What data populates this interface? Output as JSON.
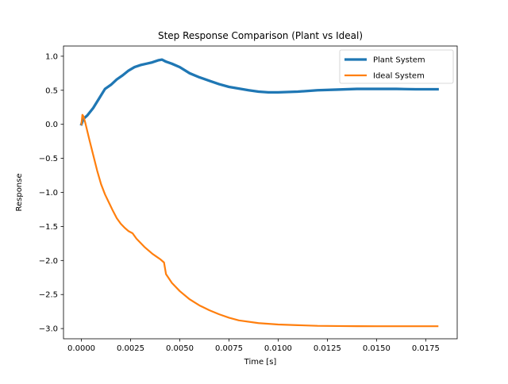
{
  "chart_data": {
    "type": "line",
    "title": "Step Response Comparison (Plant vs Ideal)",
    "xlabel": "Time [s]",
    "ylabel": "Response",
    "xlim": [
      -0.00091,
      0.0191
    ],
    "ylim": [
      -3.15,
      1.15
    ],
    "x_ticks": [
      0.0,
      0.0025,
      0.005,
      0.0075,
      0.01,
      0.0125,
      0.015,
      0.0175
    ],
    "x_tick_labels": [
      "0.0000",
      "0.0025",
      "0.0050",
      "0.0075",
      "0.0100",
      "0.0125",
      "0.0150",
      "0.0175"
    ],
    "y_ticks": [
      -3.0,
      -2.5,
      -2.0,
      -1.5,
      -1.0,
      -0.5,
      0.0,
      0.5,
      1.0
    ],
    "y_tick_labels": [
      "−3.0",
      "−2.5",
      "−2.0",
      "−1.5",
      "−1.0",
      "−0.5",
      "0.0",
      "0.5",
      "1.0"
    ],
    "grid": false,
    "legend_position": "top-right",
    "series": [
      {
        "name": "Plant System",
        "color": "#1f77b4",
        "line_width": "thick",
        "points": [
          [
            0.0,
            0.0
          ],
          [
            0.0001,
            0.08
          ],
          [
            0.0003,
            0.13
          ],
          [
            0.0006,
            0.24
          ],
          [
            0.0009,
            0.38
          ],
          [
            0.0012,
            0.52
          ],
          [
            0.0015,
            0.58
          ],
          [
            0.0018,
            0.66
          ],
          [
            0.0021,
            0.72
          ],
          [
            0.0024,
            0.79
          ],
          [
            0.0027,
            0.84
          ],
          [
            0.003,
            0.87
          ],
          [
            0.0033,
            0.89
          ],
          [
            0.0036,
            0.91
          ],
          [
            0.0039,
            0.94
          ],
          [
            0.0041,
            0.95
          ],
          [
            0.0043,
            0.92
          ],
          [
            0.0046,
            0.89
          ],
          [
            0.005,
            0.84
          ],
          [
            0.0055,
            0.75
          ],
          [
            0.006,
            0.69
          ],
          [
            0.0065,
            0.64
          ],
          [
            0.007,
            0.59
          ],
          [
            0.0075,
            0.55
          ],
          [
            0.008,
            0.525
          ],
          [
            0.0085,
            0.5
          ],
          [
            0.009,
            0.48
          ],
          [
            0.0095,
            0.47
          ],
          [
            0.01,
            0.47
          ],
          [
            0.011,
            0.48
          ],
          [
            0.012,
            0.5
          ],
          [
            0.013,
            0.51
          ],
          [
            0.014,
            0.52
          ],
          [
            0.015,
            0.52
          ],
          [
            0.016,
            0.52
          ],
          [
            0.017,
            0.515
          ],
          [
            0.0181,
            0.515
          ]
        ]
      },
      {
        "name": "Ideal System",
        "color": "#ff7f0e",
        "line_width": "normal",
        "points": [
          [
            0.0,
            0.0
          ],
          [
            5e-05,
            0.14
          ],
          [
            0.0001,
            0.12
          ],
          [
            0.0002,
            0.02
          ],
          [
            0.0004,
            -0.22
          ],
          [
            0.0006,
            -0.45
          ],
          [
            0.0008,
            -0.68
          ],
          [
            0.001,
            -0.88
          ],
          [
            0.0012,
            -1.03
          ],
          [
            0.0014,
            -1.15
          ],
          [
            0.0016,
            -1.27
          ],
          [
            0.0018,
            -1.38
          ],
          [
            0.002,
            -1.46
          ],
          [
            0.0022,
            -1.52
          ],
          [
            0.0024,
            -1.57
          ],
          [
            0.0026,
            -1.6
          ],
          [
            0.0028,
            -1.68
          ],
          [
            0.003,
            -1.74
          ],
          [
            0.0032,
            -1.8
          ],
          [
            0.0034,
            -1.85
          ],
          [
            0.0036,
            -1.9
          ],
          [
            0.0038,
            -1.94
          ],
          [
            0.004,
            -1.98
          ],
          [
            0.0042,
            -2.03
          ],
          [
            0.0043,
            -2.2
          ],
          [
            0.0046,
            -2.33
          ],
          [
            0.005,
            -2.45
          ],
          [
            0.0055,
            -2.57
          ],
          [
            0.006,
            -2.66
          ],
          [
            0.0065,
            -2.73
          ],
          [
            0.007,
            -2.79
          ],
          [
            0.0075,
            -2.84
          ],
          [
            0.008,
            -2.88
          ],
          [
            0.009,
            -2.92
          ],
          [
            0.01,
            -2.94
          ],
          [
            0.011,
            -2.95
          ],
          [
            0.012,
            -2.96
          ],
          [
            0.013,
            -2.963
          ],
          [
            0.014,
            -2.965
          ],
          [
            0.015,
            -2.966
          ],
          [
            0.016,
            -2.966
          ],
          [
            0.017,
            -2.966
          ],
          [
            0.0181,
            -2.966
          ]
        ]
      }
    ]
  }
}
